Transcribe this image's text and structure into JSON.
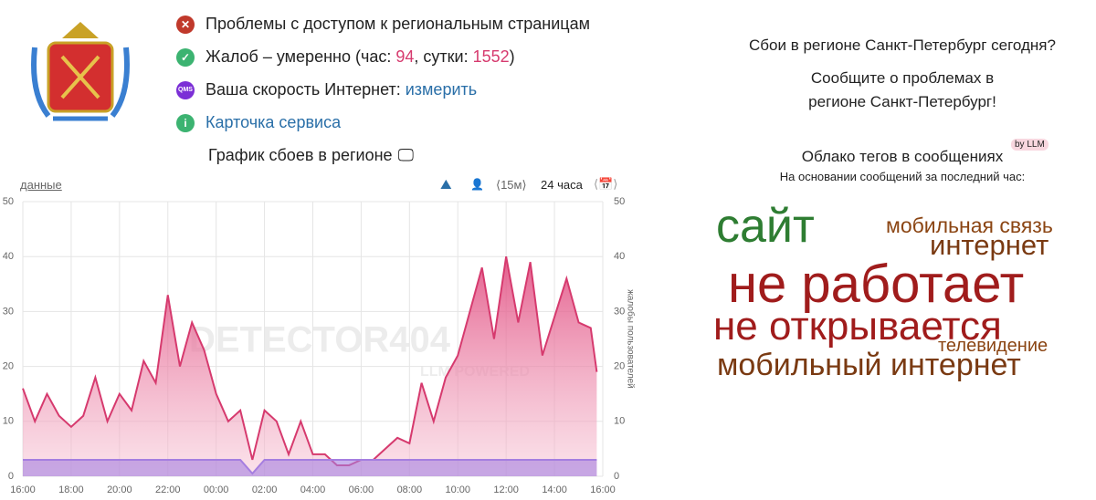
{
  "status": {
    "access": "Проблемы с доступом к региональным страницам",
    "complaints": {
      "text": "Жалоб – умеренно (час: ",
      "hour": 94,
      "mid": ", сутки: ",
      "day": 1552,
      "end": ")"
    },
    "speed": {
      "icon": "QMS",
      "text": "Ваша скорость Интернет: ",
      "link": "измерить"
    },
    "card": "Карточка сервиса",
    "graph_title": "График сбоев в регионе"
  },
  "toolbar": {
    "data": "данные",
    "step": "⟨15м⟩",
    "range": "24 часа"
  },
  "watermark": {
    "brand": "DETECTOR404",
    "sub": "LLM POWERED"
  },
  "right": {
    "question": "Сбои в регионе Санкт-Петербург сегодня?",
    "report1": "Сообщите о проблемах в",
    "report2": "регионе Санкт-Петербург!",
    "cloud_title": "Облако тегов в сообщениях",
    "badge": "by LLM",
    "cloud_sub": "На основании сообщений за последний час:",
    "tags": [
      "сайт",
      "мобильная связь",
      "интернет",
      "не работает",
      "не открывается",
      "телевидение",
      "мобильный интернет"
    ]
  },
  "chart_data": {
    "type": "area",
    "y2_label": "жалобы пользователей",
    "x": [
      0,
      0.5,
      1,
      1.5,
      2,
      2.5,
      3,
      3.5,
      4,
      4.5,
      5,
      5.5,
      6,
      6.5,
      7,
      7.5,
      8,
      8.5,
      9,
      9.5,
      10,
      10.5,
      11,
      11.5,
      12,
      12.5,
      13,
      13.5,
      14,
      14.5,
      15,
      15.5,
      16,
      16.5,
      17,
      17.5,
      18,
      18.5,
      19,
      19.5,
      20,
      20.5,
      21,
      21.5,
      22,
      22.5,
      23,
      23.5,
      23.75
    ],
    "series": [
      {
        "color": "#d63a6e",
        "values": [
          16,
          10,
          15,
          11,
          9,
          11,
          18,
          10,
          15,
          12,
          21,
          17,
          33,
          20,
          28,
          23,
          15,
          10,
          12,
          3,
          12,
          10,
          4,
          10,
          4,
          4,
          2,
          2,
          3,
          3,
          5,
          7,
          6,
          17,
          10,
          18,
          22,
          30,
          38,
          25,
          40,
          28,
          39,
          22,
          29,
          36,
          28,
          27,
          19
        ]
      },
      {
        "color": "#a57ee0",
        "values": [
          3,
          3,
          3,
          3,
          3,
          3,
          3,
          3,
          3,
          3,
          3,
          3,
          3,
          3,
          3,
          3,
          3,
          3,
          3,
          0.5,
          3,
          3,
          3,
          3,
          3,
          3,
          3,
          3,
          3,
          3,
          3,
          3,
          3,
          3,
          3,
          3,
          3,
          3,
          3,
          3,
          3,
          3,
          3,
          3,
          3,
          3,
          3,
          3,
          3
        ]
      }
    ],
    "xlim": [
      0,
      24
    ],
    "xticks": [
      {
        "value": 0,
        "label": "16:00"
      },
      {
        "value": 2,
        "label": "18:00"
      },
      {
        "value": 4,
        "label": "20:00"
      },
      {
        "value": 6,
        "label": "22:00"
      },
      {
        "value": 8,
        "label": "00:00"
      },
      {
        "value": 10,
        "label": "02:00"
      },
      {
        "value": 12,
        "label": "04:00"
      },
      {
        "value": 14,
        "label": "06:00"
      },
      {
        "value": 16,
        "label": "08:00"
      },
      {
        "value": 18,
        "label": "10:00"
      },
      {
        "value": 20,
        "label": "12:00"
      },
      {
        "value": 22,
        "label": "14:00"
      },
      {
        "value": 24,
        "label": "16:00"
      }
    ],
    "ylim": [
      0,
      50
    ],
    "yticks": [
      0,
      10,
      20,
      30,
      40,
      50
    ],
    "y2lim": [
      0,
      50
    ],
    "y2ticks": [
      0,
      10,
      20,
      30,
      40,
      50
    ],
    "grid": true
  }
}
